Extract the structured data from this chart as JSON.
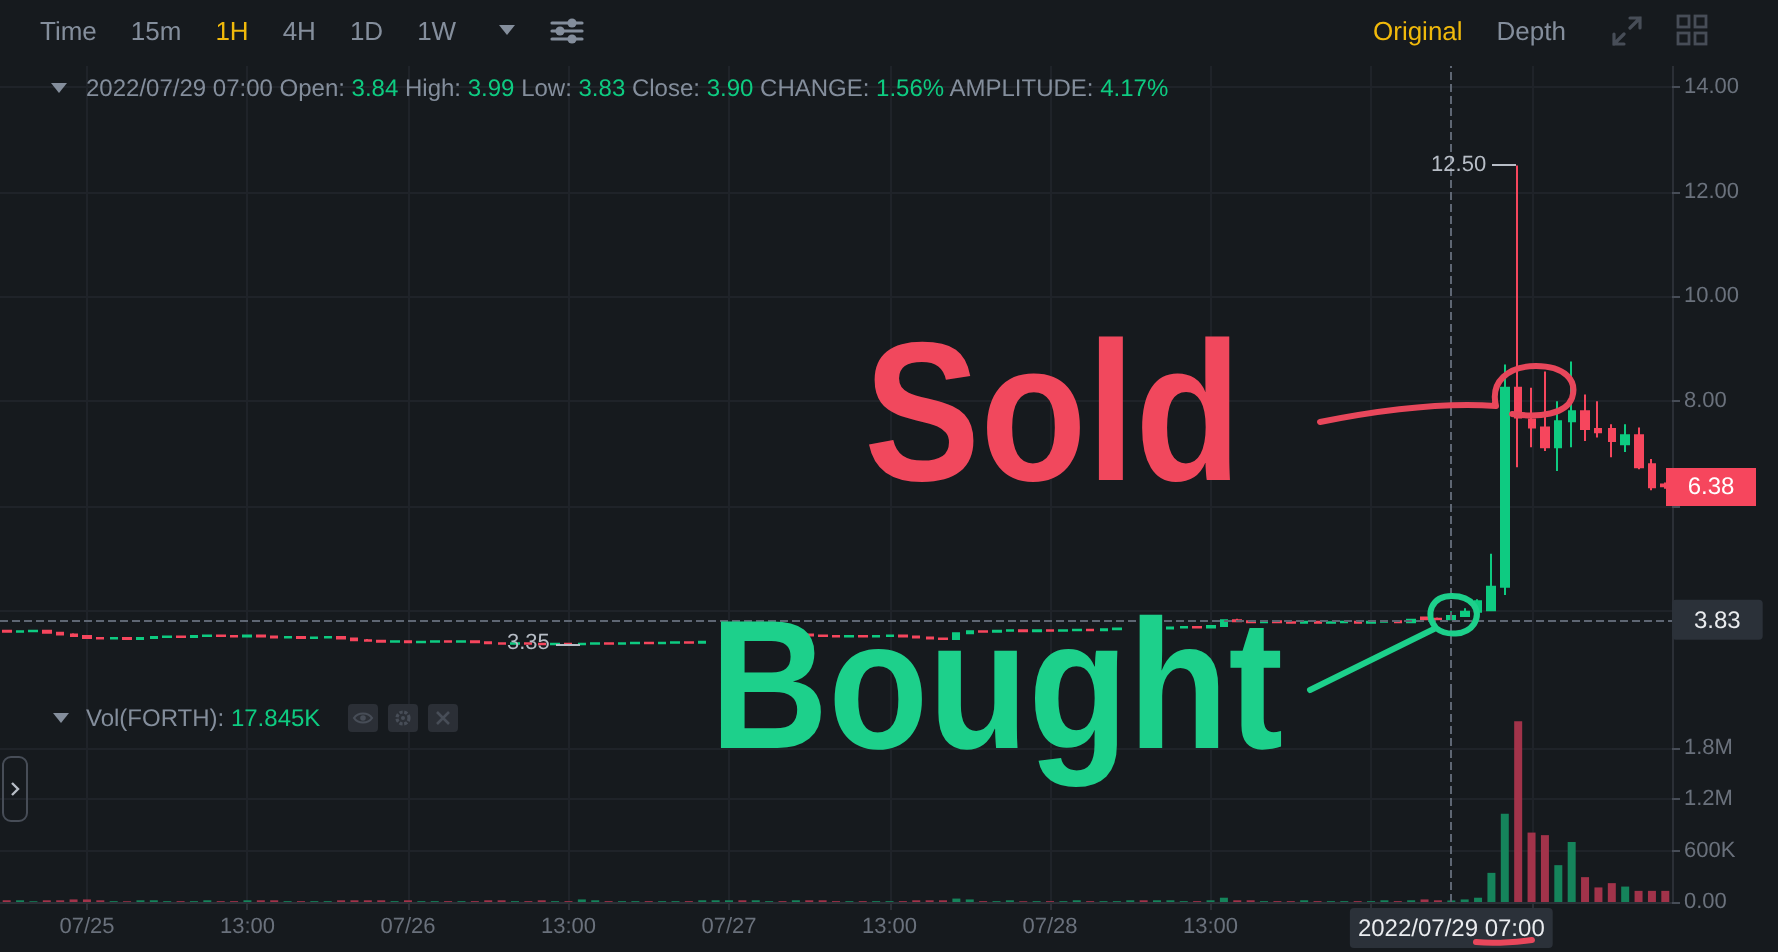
{
  "chart_data": [
    {
      "type": "other",
      "annotations": [
        "Time",
        "15m",
        "1H",
        "4H",
        "1D",
        "1W"
      ]
    },
    {
      "type": "other",
      "annotations": [
        "Original",
        "Depth"
      ]
    },
    {
      "type": "candlestick",
      "subtitle": "2022/07/29 07:00 Open: 3.84 High: 3.99 Low: 3.83 Close: 3.90 CHANGE: 1.56% AMPLITUDE: 4.17%",
      "x": [
        "2022-07-24T19:00",
        "2022-07-24T20:00",
        "2022-07-24T21:00",
        "2022-07-24T22:00",
        "2022-07-24T23:00",
        "2022-07-25T00:00",
        "2022-07-25T01:00",
        "2022-07-25T02:00",
        "2022-07-25T03:00",
        "2022-07-25T04:00",
        "2022-07-25T05:00",
        "2022-07-25T06:00",
        "2022-07-25T07:00",
        "2022-07-25T08:00",
        "2022-07-25T09:00",
        "2022-07-25T10:00",
        "2022-07-25T11:00",
        "2022-07-25T12:00",
        "2022-07-25T13:00",
        "2022-07-25T14:00",
        "2022-07-25T15:00",
        "2022-07-25T16:00",
        "2022-07-25T17:00",
        "2022-07-25T18:00",
        "2022-07-25T19:00",
        "2022-07-25T20:00",
        "2022-07-25T21:00",
        "2022-07-25T22:00",
        "2022-07-25T23:00",
        "2022-07-26T00:00",
        "2022-07-26T01:00",
        "2022-07-26T02:00",
        "2022-07-26T03:00",
        "2022-07-26T04:00",
        "2022-07-26T05:00",
        "2022-07-26T06:00",
        "2022-07-26T07:00",
        "2022-07-26T08:00",
        "2022-07-26T09:00",
        "2022-07-26T10:00",
        "2022-07-26T11:00",
        "2022-07-26T12:00",
        "2022-07-26T13:00",
        "2022-07-26T14:00",
        "2022-07-26T15:00",
        "2022-07-26T16:00",
        "2022-07-26T17:00",
        "2022-07-26T18:00",
        "2022-07-26T19:00",
        "2022-07-26T20:00",
        "2022-07-26T21:00",
        "2022-07-26T22:00",
        "2022-07-26T23:00",
        "2022-07-27T07:00",
        "2022-07-27T08:00",
        "2022-07-27T09:00",
        "2022-07-27T10:00",
        "2022-07-27T11:00",
        "2022-07-27T12:00",
        "2022-07-27T13:00",
        "2022-07-27T14:00",
        "2022-07-27T15:00",
        "2022-07-27T16:00",
        "2022-07-27T17:00",
        "2022-07-27T18:00",
        "2022-07-27T19:00",
        "2022-07-27T20:00",
        "2022-07-27T21:00",
        "2022-07-27T22:00",
        "2022-07-27T23:00",
        "2022-07-28T00:00",
        "2022-07-28T01:00",
        "2022-07-28T02:00",
        "2022-07-28T03:00",
        "2022-07-28T04:00",
        "2022-07-28T05:00",
        "2022-07-28T06:00",
        "2022-07-28T10:00",
        "2022-07-28T11:00",
        "2022-07-28T12:00",
        "2022-07-28T13:00",
        "2022-07-28T14:00",
        "2022-07-28T15:00",
        "2022-07-28T16:00",
        "2022-07-28T17:00",
        "2022-07-28T18:00",
        "2022-07-28T19:00",
        "2022-07-28T20:00",
        "2022-07-28T21:00",
        "2022-07-28T22:00",
        "2022-07-28T23:00",
        "2022-07-29T00:00",
        "2022-07-29T01:00",
        "2022-07-29T02:00",
        "2022-07-29T03:00",
        "2022-07-29T04:00",
        "2022-07-29T05:00",
        "2022-07-29T06:00",
        "2022-07-29T07:00",
        "2022-07-29T08:00",
        "2022-07-29T09:00",
        "2022-07-29T10:00",
        "2022-07-29T11:00",
        "2022-07-29T12:00",
        "2022-07-29T13:00",
        "2022-07-29T14:00",
        "2022-07-29T15:00",
        "2022-07-29T16:00",
        "2022-07-29T17:00",
        "2022-07-29T18:00",
        "2022-07-29T19:00",
        "2022-07-29T20:00",
        "2022-07-29T21:00",
        "2022-07-29T22:00",
        "2022-07-29T23:00"
      ],
      "ohlc": [
        [
          3.62,
          3.64,
          3.59,
          3.6
        ],
        [
          3.6,
          3.63,
          3.59,
          3.61
        ],
        [
          3.61,
          3.63,
          3.59,
          3.62
        ],
        [
          3.62,
          3.63,
          3.57,
          3.58
        ],
        [
          3.58,
          3.6,
          3.54,
          3.55
        ],
        [
          3.55,
          3.57,
          3.51,
          3.52
        ],
        [
          3.52,
          3.54,
          3.47,
          3.48
        ],
        [
          3.48,
          3.5,
          3.45,
          3.47
        ],
        [
          3.47,
          3.49,
          3.45,
          3.48
        ],
        [
          3.48,
          3.49,
          3.45,
          3.46
        ],
        [
          3.46,
          3.49,
          3.45,
          3.48
        ],
        [
          3.48,
          3.51,
          3.47,
          3.5
        ],
        [
          3.5,
          3.53,
          3.49,
          3.51
        ],
        [
          3.51,
          3.53,
          3.49,
          3.5
        ],
        [
          3.5,
          3.53,
          3.49,
          3.52
        ],
        [
          3.52,
          3.54,
          3.5,
          3.53
        ],
        [
          3.53,
          3.55,
          3.51,
          3.52
        ],
        [
          3.52,
          3.54,
          3.5,
          3.51
        ],
        [
          3.51,
          3.54,
          3.5,
          3.53
        ],
        [
          3.53,
          3.54,
          3.5,
          3.51
        ],
        [
          3.51,
          3.53,
          3.48,
          3.49
        ],
        [
          3.49,
          3.51,
          3.47,
          3.5
        ],
        [
          3.5,
          3.51,
          3.47,
          3.48
        ],
        [
          3.48,
          3.5,
          3.46,
          3.49
        ],
        [
          3.49,
          3.51,
          3.47,
          3.5
        ],
        [
          3.5,
          3.51,
          3.46,
          3.47
        ],
        [
          3.47,
          3.48,
          3.43,
          3.44
        ],
        [
          3.44,
          3.46,
          3.42,
          3.43
        ],
        [
          3.43,
          3.44,
          3.4,
          3.41
        ],
        [
          3.41,
          3.43,
          3.4,
          3.42
        ],
        [
          3.42,
          3.43,
          3.39,
          3.4
        ],
        [
          3.4,
          3.43,
          3.39,
          3.41
        ],
        [
          3.41,
          3.43,
          3.4,
          3.42
        ],
        [
          3.42,
          3.43,
          3.4,
          3.41
        ],
        [
          3.41,
          3.43,
          3.4,
          3.42
        ],
        [
          3.42,
          3.43,
          3.39,
          3.4
        ],
        [
          3.4,
          3.41,
          3.37,
          3.38
        ],
        [
          3.38,
          3.4,
          3.36,
          3.37
        ],
        [
          3.37,
          3.39,
          3.36,
          3.38
        ],
        [
          3.38,
          3.39,
          3.36,
          3.37
        ],
        [
          3.37,
          3.38,
          3.36,
          3.36
        ],
        [
          3.36,
          3.38,
          3.36,
          3.37
        ],
        [
          3.37,
          3.38,
          3.36,
          3.36
        ],
        [
          3.36,
          3.38,
          3.35,
          3.37
        ],
        [
          3.37,
          3.39,
          3.36,
          3.38
        ],
        [
          3.38,
          3.39,
          3.36,
          3.37
        ],
        [
          3.37,
          3.39,
          3.36,
          3.38
        ],
        [
          3.38,
          3.4,
          3.37,
          3.39
        ],
        [
          3.39,
          3.4,
          3.37,
          3.38
        ],
        [
          3.38,
          3.4,
          3.37,
          3.39
        ],
        [
          3.39,
          3.41,
          3.38,
          3.4
        ],
        [
          3.4,
          3.41,
          3.38,
          3.39
        ],
        [
          3.39,
          3.42,
          3.38,
          3.41
        ],
        [
          3.55,
          3.56,
          3.52,
          3.53
        ],
        [
          3.53,
          3.55,
          3.51,
          3.52
        ],
        [
          3.52,
          3.54,
          3.5,
          3.51
        ],
        [
          3.51,
          3.53,
          3.5,
          3.52
        ],
        [
          3.52,
          3.53,
          3.5,
          3.51
        ],
        [
          3.51,
          3.53,
          3.5,
          3.52
        ],
        [
          3.52,
          3.54,
          3.51,
          3.53
        ],
        [
          3.53,
          3.54,
          3.5,
          3.51
        ],
        [
          3.51,
          3.52,
          3.48,
          3.49
        ],
        [
          3.49,
          3.5,
          3.46,
          3.47
        ],
        [
          3.47,
          3.49,
          3.45,
          3.46
        ],
        [
          3.46,
          3.59,
          3.45,
          3.57
        ],
        [
          3.57,
          3.62,
          3.56,
          3.61
        ],
        [
          3.61,
          3.63,
          3.59,
          3.6
        ],
        [
          3.6,
          3.63,
          3.59,
          3.62
        ],
        [
          3.62,
          3.64,
          3.6,
          3.63
        ],
        [
          3.63,
          3.64,
          3.6,
          3.61
        ],
        [
          3.61,
          3.64,
          3.6,
          3.63
        ],
        [
          3.63,
          3.64,
          3.61,
          3.62
        ],
        [
          3.62,
          3.64,
          3.61,
          3.63
        ],
        [
          3.63,
          3.65,
          3.62,
          3.64
        ],
        [
          3.64,
          3.65,
          3.62,
          3.63
        ],
        [
          3.63,
          3.66,
          3.62,
          3.65
        ],
        [
          3.65,
          3.67,
          3.64,
          3.66
        ],
        [
          3.66,
          3.69,
          3.65,
          3.68
        ],
        [
          3.68,
          3.7,
          3.66,
          3.69
        ],
        [
          3.69,
          3.7,
          3.67,
          3.68
        ],
        [
          3.68,
          3.72,
          3.67,
          3.71
        ],
        [
          3.71,
          3.84,
          3.7,
          3.82
        ],
        [
          3.82,
          3.85,
          3.79,
          3.8
        ],
        [
          3.8,
          3.82,
          3.77,
          3.78
        ],
        [
          3.78,
          3.81,
          3.77,
          3.8
        ],
        [
          3.8,
          3.81,
          3.77,
          3.78
        ],
        [
          3.78,
          3.8,
          3.76,
          3.77
        ],
        [
          3.77,
          3.8,
          3.76,
          3.79
        ],
        [
          3.79,
          3.8,
          3.76,
          3.77
        ],
        [
          3.77,
          3.79,
          3.76,
          3.78
        ],
        [
          3.78,
          3.8,
          3.77,
          3.79
        ],
        [
          3.79,
          3.8,
          3.76,
          3.77
        ],
        [
          3.77,
          3.8,
          3.76,
          3.79
        ],
        [
          3.79,
          3.81,
          3.78,
          3.8
        ],
        [
          3.8,
          3.81,
          3.77,
          3.78
        ],
        [
          3.78,
          3.84,
          3.77,
          3.83
        ],
        [
          3.87,
          3.89,
          3.83,
          3.84
        ],
        [
          3.85,
          3.87,
          3.83,
          3.84
        ],
        [
          3.84,
          3.99,
          3.83,
          3.9
        ],
        [
          3.9,
          4.05,
          3.88,
          3.98
        ],
        [
          3.98,
          4.22,
          3.96,
          4.18
        ],
        [
          4.01,
          5.09,
          4.0,
          4.46
        ],
        [
          4.46,
          8.7,
          4.3,
          8.26
        ],
        [
          8.26,
          12.5,
          6.74,
          7.69
        ],
        [
          7.65,
          8.26,
          7.12,
          7.5
        ],
        [
          7.5,
          8.57,
          7.05,
          7.12
        ],
        [
          7.12,
          8.0,
          6.67,
          7.62
        ],
        [
          7.62,
          8.76,
          7.12,
          7.81
        ],
        [
          7.81,
          8.13,
          7.24,
          7.47
        ],
        [
          7.47,
          8.0,
          7.31,
          7.41
        ],
        [
          7.47,
          7.56,
          6.93,
          7.24
        ],
        [
          7.18,
          7.56,
          7.03,
          7.35
        ],
        [
          7.35,
          7.5,
          6.7,
          6.74
        ],
        [
          6.8,
          6.9,
          6.3,
          6.36
        ],
        [
          6.41,
          6.45,
          6.33,
          6.38
        ]
      ],
      "colors": [
        "#f6465d",
        "#0ecb81",
        "#0ecb81",
        "#f6465d",
        "#f6465d",
        "#f6465d",
        "#f6465d",
        "#f6465d",
        "#0ecb81",
        "#f6465d",
        "#0ecb81",
        "#0ecb81",
        "#0ecb81",
        "#f6465d",
        "#0ecb81",
        "#0ecb81",
        "#f6465d",
        "#f6465d",
        "#0ecb81",
        "#f6465d",
        "#f6465d",
        "#0ecb81",
        "#f6465d",
        "#0ecb81",
        "#0ecb81",
        "#f6465d",
        "#f6465d",
        "#f6465d",
        "#f6465d",
        "#0ecb81",
        "#f6465d",
        "#0ecb81",
        "#0ecb81",
        "#f6465d",
        "#0ecb81",
        "#f6465d",
        "#f6465d",
        "#f6465d",
        "#0ecb81",
        "#f6465d",
        "#f6465d",
        "#0ecb81",
        "#f6465d",
        "#0ecb81",
        "#0ecb81",
        "#f6465d",
        "#0ecb81",
        "#0ecb81",
        "#f6465d",
        "#0ecb81",
        "#0ecb81",
        "#f6465d",
        "#0ecb81",
        "#f6465d",
        "#f6465d",
        "#f6465d",
        "#0ecb81",
        "#f6465d",
        "#0ecb81",
        "#0ecb81",
        "#f6465d",
        "#f6465d",
        "#f6465d",
        "#f6465d",
        "#0ecb81",
        "#0ecb81",
        "#f6465d",
        "#0ecb81",
        "#0ecb81",
        "#f6465d",
        "#0ecb81",
        "#f6465d",
        "#0ecb81",
        "#0ecb81",
        "#f6465d",
        "#0ecb81",
        "#0ecb81",
        "#0ecb81",
        "#0ecb81",
        "#f6465d",
        "#0ecb81",
        "#0ecb81",
        "#f6465d",
        "#f6465d",
        "#0ecb81",
        "#f6465d",
        "#f6465d",
        "#0ecb81",
        "#f6465d",
        "#0ecb81",
        "#0ecb81",
        "#f6465d",
        "#0ecb81",
        "#0ecb81",
        "#f6465d",
        "#0ecb81",
        "#f6465d",
        "#f6465d",
        "#0ecb81",
        "#0ecb81",
        "#0ecb81",
        "#0ecb81",
        "#0ecb81",
        "#f6465d",
        "#f6465d",
        "#f6465d",
        "#0ecb81",
        "#0ecb81",
        "#f6465d",
        "#f6465d",
        "#f6465d",
        "#0ecb81",
        "#f6465d",
        "#f6465d",
        "#f6465d"
      ],
      "xlim": [
        "2022-07-24T18:30",
        "2022-07-29T23:30"
      ],
      "xticks": [
        {
          "value": "2022-07-25T01:00",
          "label": null
        },
        {
          "value": "2022-07-25T13:00",
          "label": null
        },
        {
          "value": "2022-07-26T01:00",
          "label": null
        },
        {
          "value": "2022-07-26T13:00",
          "label": null
        },
        {
          "value": "2022-07-27T01:00",
          "label": null
        },
        {
          "value": "2022-07-27T13:00",
          "label": null
        },
        {
          "value": "2022-07-28T01:00",
          "label": null
        },
        {
          "value": "2022-07-28T13:00",
          "label": null
        },
        {
          "value": "2022-07-29T01:00",
          "label": null
        },
        {
          "value": "2022-07-29T13:00",
          "label": null
        }
      ],
      "ylim": [
        2.45,
        14.4
      ],
      "yticks": [
        {
          "value": 14,
          "label": "14.00"
        },
        {
          "value": 12,
          "label": "12.00"
        },
        {
          "value": 10,
          "label": "10.00"
        },
        {
          "value": 8,
          "label": "8.00"
        },
        {
          "value": 6,
          "label": null
        },
        {
          "value": 4,
          "label": null
        }
      ],
      "grid": true,
      "tick_labels": "y",
      "ref_lines": [
        {
          "axis": "x",
          "value": "2022-07-29T07:00",
          "line_style": "dashed",
          "color": "#5e6673"
        },
        {
          "axis": "y",
          "value": 3.83,
          "label": "3.83",
          "line_style": "dashed",
          "color": "#5e6673"
        }
      ],
      "annotations": [
        "Sold",
        "Bought",
        {
          "text": "12.50",
          "x": "2022-07-29T12:00",
          "y": 12.5
        },
        {
          "text": "3.35",
          "x": "2022-07-26T14:00",
          "y": 3.35
        },
        {
          "text": "6.38",
          "x": "2022-07-29T23:00",
          "y": 6.38
        }
      ]
    },
    {
      "type": "bar",
      "x": [
        "2022-07-24T19:00",
        "2022-07-24T20:00",
        "2022-07-24T21:00",
        "2022-07-24T22:00",
        "2022-07-24T23:00",
        "2022-07-25T00:00",
        "2022-07-25T01:00",
        "2022-07-25T02:00",
        "2022-07-25T03:00",
        "2022-07-25T04:00",
        "2022-07-25T05:00",
        "2022-07-25T06:00",
        "2022-07-25T07:00",
        "2022-07-25T08:00",
        "2022-07-25T09:00",
        "2022-07-25T10:00",
        "2022-07-25T11:00",
        "2022-07-25T12:00",
        "2022-07-25T13:00",
        "2022-07-25T14:00",
        "2022-07-25T15:00",
        "2022-07-25T16:00",
        "2022-07-25T17:00",
        "2022-07-25T18:00",
        "2022-07-25T19:00",
        "2022-07-25T20:00",
        "2022-07-25T21:00",
        "2022-07-25T22:00",
        "2022-07-25T23:00",
        "2022-07-26T00:00",
        "2022-07-26T01:00",
        "2022-07-26T02:00",
        "2022-07-26T03:00",
        "2022-07-26T04:00",
        "2022-07-26T05:00",
        "2022-07-26T06:00",
        "2022-07-26T07:00",
        "2022-07-26T08:00",
        "2022-07-26T09:00",
        "2022-07-26T10:00",
        "2022-07-26T11:00",
        "2022-07-26T12:00",
        "2022-07-26T13:00",
        "2022-07-26T14:00",
        "2022-07-26T15:00",
        "2022-07-26T16:00",
        "2022-07-26T17:00",
        "2022-07-26T18:00",
        "2022-07-26T19:00",
        "2022-07-26T20:00",
        "2022-07-26T21:00",
        "2022-07-26T22:00",
        "2022-07-26T23:00",
        "2022-07-27T00:00",
        "2022-07-27T01:00",
        "2022-07-27T02:00",
        "2022-07-27T03:00",
        "2022-07-27T04:00",
        "2022-07-27T05:00",
        "2022-07-27T06:00",
        "2022-07-27T07:00",
        "2022-07-27T08:00",
        "2022-07-27T09:00",
        "2022-07-27T10:00",
        "2022-07-27T11:00",
        "2022-07-27T12:00",
        "2022-07-27T13:00",
        "2022-07-27T14:00",
        "2022-07-27T15:00",
        "2022-07-27T16:00",
        "2022-07-27T17:00",
        "2022-07-27T18:00",
        "2022-07-27T19:00",
        "2022-07-27T20:00",
        "2022-07-27T21:00",
        "2022-07-27T22:00",
        "2022-07-27T23:00",
        "2022-07-28T00:00",
        "2022-07-28T01:00",
        "2022-07-28T02:00",
        "2022-07-28T03:00",
        "2022-07-28T04:00",
        "2022-07-28T05:00",
        "2022-07-28T06:00",
        "2022-07-28T07:00",
        "2022-07-28T08:00",
        "2022-07-28T09:00",
        "2022-07-28T10:00",
        "2022-07-28T11:00",
        "2022-07-28T12:00",
        "2022-07-28T13:00",
        "2022-07-28T14:00",
        "2022-07-28T15:00",
        "2022-07-28T16:00",
        "2022-07-28T17:00",
        "2022-07-28T18:00",
        "2022-07-28T19:00",
        "2022-07-28T20:00",
        "2022-07-28T21:00",
        "2022-07-28T22:00",
        "2022-07-28T23:00",
        "2022-07-29T00:00",
        "2022-07-29T01:00",
        "2022-07-29T02:00",
        "2022-07-29T03:00",
        "2022-07-29T04:00",
        "2022-07-29T05:00",
        "2022-07-29T06:00",
        "2022-07-29T07:00",
        "2022-07-29T08:00",
        "2022-07-29T09:00",
        "2022-07-29T10:00",
        "2022-07-29T11:00",
        "2022-07-29T12:00",
        "2022-07-29T13:00",
        "2022-07-29T14:00",
        "2022-07-29T15:00",
        "2022-07-29T16:00",
        "2022-07-29T17:00",
        "2022-07-29T18:00",
        "2022-07-29T19:00",
        "2022-07-29T20:00",
        "2022-07-29T21:00",
        "2022-07-29T22:00",
        "2022-07-29T23:00"
      ],
      "values": [
        20000,
        20000,
        10000,
        20000,
        20000,
        30000,
        30000,
        20000,
        10000,
        10000,
        20000,
        20000,
        10000,
        10000,
        10000,
        20000,
        10000,
        10000,
        20000,
        20000,
        20000,
        10000,
        10000,
        10000,
        10000,
        20000,
        20000,
        20000,
        20000,
        10000,
        20000,
        10000,
        10000,
        10000,
        10000,
        10000,
        20000,
        20000,
        10000,
        10000,
        20000,
        10000,
        10000,
        30000,
        20000,
        10000,
        10000,
        10000,
        10000,
        10000,
        10000,
        10000,
        20000,
        20000,
        20000,
        20000,
        20000,
        10000,
        10000,
        20000,
        20000,
        20000,
        10000,
        10000,
        10000,
        10000,
        10000,
        10000,
        20000,
        20000,
        20000,
        40000,
        30000,
        10000,
        10000,
        20000,
        10000,
        10000,
        10000,
        10000,
        20000,
        10000,
        10000,
        10000,
        20000,
        20000,
        20000,
        20000,
        10000,
        10000,
        20000,
        50000,
        20000,
        20000,
        10000,
        10000,
        10000,
        20000,
        10000,
        10000,
        10000,
        10000,
        10000,
        20000,
        10000,
        20000,
        30000,
        20000,
        17845,
        30000,
        50000,
        340000,
        1030000,
        2110000,
        810000,
        780000,
        430000,
        700000,
        290000,
        170000,
        220000,
        180000,
        130000,
        130000,
        130000
      ],
      "colors": [
        "#a2334a",
        "#15845b",
        "#15845b",
        "#a2334a",
        "#a2334a",
        "#a2334a",
        "#a2334a",
        "#a2334a",
        "#15845b",
        "#a2334a",
        "#15845b",
        "#15845b",
        "#15845b",
        "#a2334a",
        "#15845b",
        "#15845b",
        "#a2334a",
        "#a2334a",
        "#15845b",
        "#a2334a",
        "#a2334a",
        "#15845b",
        "#a2334a",
        "#15845b",
        "#15845b",
        "#a2334a",
        "#a2334a",
        "#a2334a",
        "#a2334a",
        "#15845b",
        "#a2334a",
        "#15845b",
        "#15845b",
        "#a2334a",
        "#15845b",
        "#a2334a",
        "#a2334a",
        "#a2334a",
        "#15845b",
        "#a2334a",
        "#a2334a",
        "#15845b",
        "#a2334a",
        "#15845b",
        "#15845b",
        "#a2334a",
        "#15845b",
        "#15845b",
        "#a2334a",
        "#15845b",
        "#15845b",
        "#a2334a",
        "#15845b",
        "#15845b",
        "#15845b",
        "#a2334a",
        "#15845b",
        "#15845b",
        "#a2334a",
        "#15845b",
        "#a2334a",
        "#a2334a",
        "#a2334a",
        "#15845b",
        "#a2334a",
        "#15845b",
        "#15845b",
        "#a2334a",
        "#a2334a",
        "#a2334a",
        "#a2334a",
        "#15845b",
        "#15845b",
        "#a2334a",
        "#15845b",
        "#15845b",
        "#a2334a",
        "#15845b",
        "#a2334a",
        "#15845b",
        "#15845b",
        "#a2334a",
        "#15845b",
        "#15845b",
        "#15845b",
        "#a2334a",
        "#15845b",
        "#15845b",
        "#15845b",
        "#a2334a",
        "#15845b",
        "#15845b",
        "#a2334a",
        "#a2334a",
        "#15845b",
        "#a2334a",
        "#a2334a",
        "#15845b",
        "#a2334a",
        "#15845b",
        "#15845b",
        "#a2334a",
        "#15845b",
        "#15845b",
        "#a2334a",
        "#15845b",
        "#a2334a",
        "#a2334a",
        "#15845b",
        "#15845b",
        "#15845b",
        "#15845b",
        "#15845b",
        "#a2334a",
        "#a2334a",
        "#a2334a",
        "#15845b",
        "#15845b",
        "#a2334a",
        "#a2334a",
        "#a2334a",
        "#15845b",
        "#a2334a",
        "#a2334a",
        "#a2334a"
      ],
      "xlim": [
        "2022-07-24T18:30",
        "2022-07-29T23:30"
      ],
      "xticks": [
        {
          "value": "2022-07-25T01:00",
          "label": "07/25"
        },
        {
          "value": "2022-07-25T13:00",
          "label": "13:00"
        },
        {
          "value": "2022-07-26T01:00",
          "label": "07/26"
        },
        {
          "value": "2022-07-26T13:00",
          "label": "13:00"
        },
        {
          "value": "2022-07-27T01:00",
          "label": "07/27"
        },
        {
          "value": "2022-07-27T13:00",
          "label": "13:00"
        },
        {
          "value": "2022-07-28T01:00",
          "label": "07/28"
        },
        {
          "value": "2022-07-28T13:00",
          "label": "13:00"
        },
        {
          "value": "2022-07-29T01:00",
          "label": null
        },
        {
          "value": "2022-07-29T13:00",
          "label": null
        }
      ],
      "ylim": [
        0,
        2450000
      ],
      "yticks": [
        {
          "value": 0,
          "label": "0.00"
        },
        {
          "value": 600000,
          "label": "600K"
        },
        {
          "value": 1200000,
          "label": "1.2M"
        },
        {
          "value": 1800000,
          "label": "1.8M"
        }
      ],
      "grid": true,
      "ref_lines": [
        {
          "axis": "x",
          "value": "2022-07-29T07:00",
          "label": "2022/07/29 07:00",
          "line_style": "dashed",
          "color": "#5e6673"
        }
      ],
      "annotations": [
        "Vol(FORTH): 17.845K"
      ]
    }
  ]
}
